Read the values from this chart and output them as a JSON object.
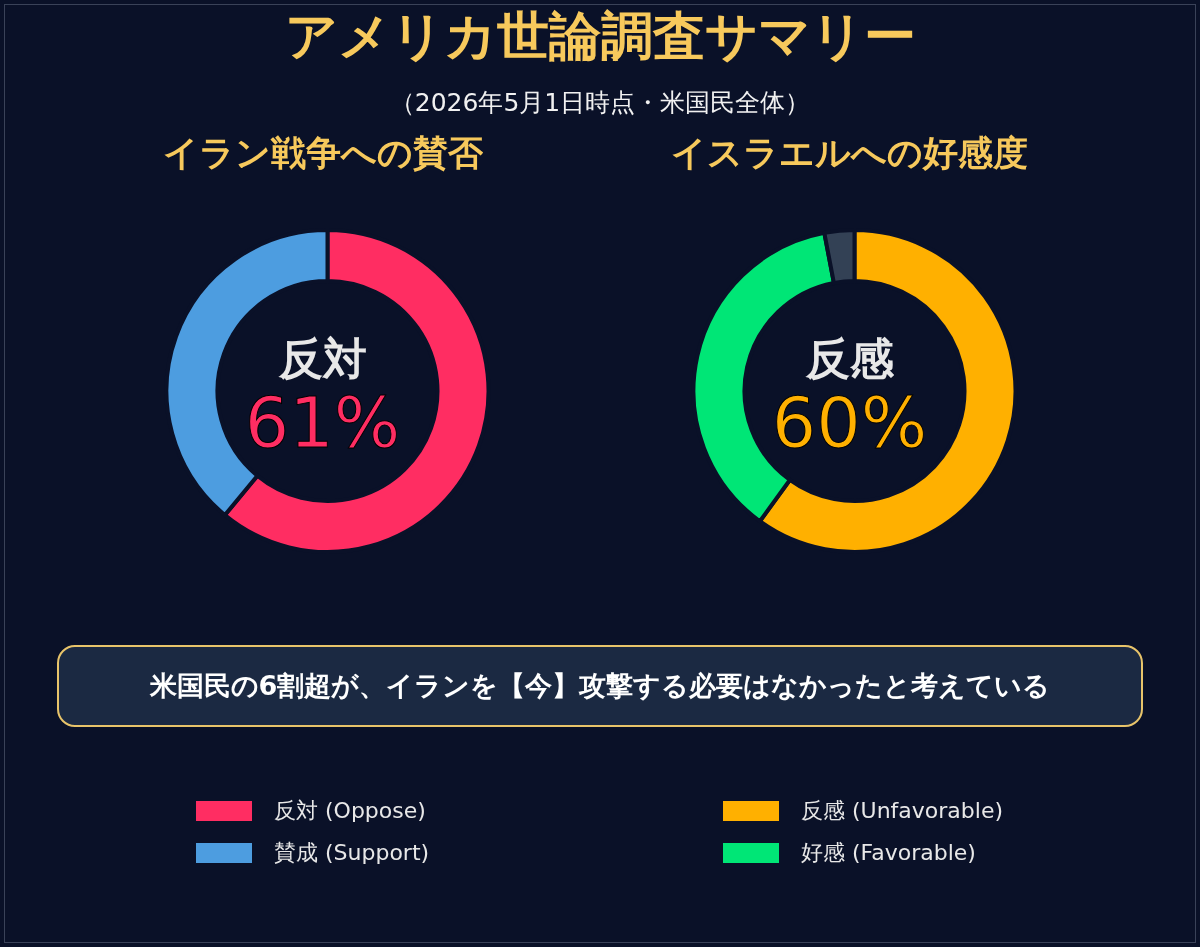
{
  "chart_data": [
    {
      "type": "other",
      "title": "アメリカ世論調査サマリー",
      "subtitle": "（2026年5月1日時点・米国民全体）",
      "annotations": [
        "米国民の6割超が、イランを【今】攻撃する必要はなかったと考えている"
      ]
    },
    {
      "type": "donut",
      "title": "イラン戦争への賛否",
      "categories": [
        "反対 (Oppose)",
        "賛成 (Support)"
      ],
      "values": [
        61,
        39
      ],
      "colors": [
        "#ff2d62",
        "#4d9de0"
      ],
      "annotations": [
        "反対",
        "61%"
      ],
      "legend": "bottom"
    },
    {
      "type": "donut",
      "title": "イスラエルへの好感度",
      "categories": [
        "反感 (Unfavorable)",
        "好感 (Favorable)",
        null
      ],
      "values": [
        60,
        37,
        3
      ],
      "colors": [
        "#ffb000",
        "#00e676",
        "#334155"
      ],
      "annotations": [
        "反感",
        "60%"
      ],
      "legend": "bottom"
    }
  ]
}
